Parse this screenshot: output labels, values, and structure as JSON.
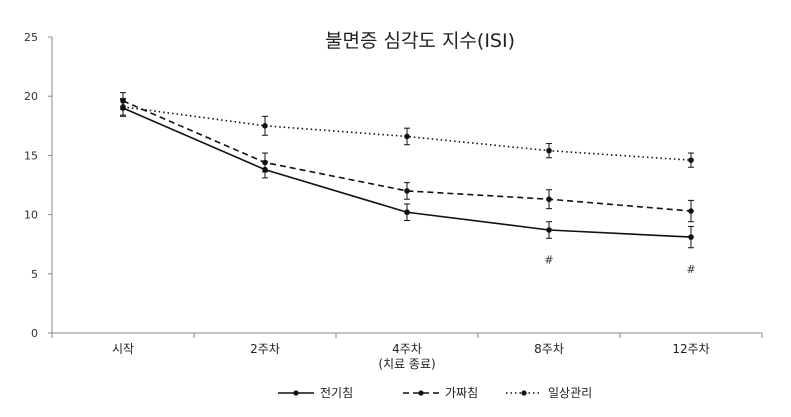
{
  "chart_data": {
    "type": "line",
    "title": "불면증 심각도 지수(ISI)",
    "xlabel": "",
    "ylabel": "",
    "ylim": [
      0,
      25
    ],
    "yticks": [
      0,
      5,
      10,
      15,
      20,
      25
    ],
    "categories": [
      "시작",
      "2주차",
      "4주차",
      "8주차",
      "12주차"
    ],
    "category_sublabels": [
      "",
      "",
      "(치료 종료)",
      "",
      ""
    ],
    "series": [
      {
        "name": "전기침",
        "style": "solid",
        "values": [
          19.0,
          13.8,
          10.2,
          8.7,
          8.1
        ],
        "error": [
          0.7,
          0.7,
          0.7,
          0.7,
          0.9
        ]
      },
      {
        "name": "가짜침",
        "style": "dashed",
        "values": [
          19.6,
          14.4,
          12.0,
          11.3,
          10.3
        ],
        "error": [
          0.7,
          0.8,
          0.7,
          0.8,
          0.9
        ]
      },
      {
        "name": "일상관리",
        "style": "dotted",
        "values": [
          19.1,
          17.5,
          16.6,
          15.4,
          14.6
        ],
        "error": [
          0.7,
          0.8,
          0.7,
          0.6,
          0.6
        ]
      }
    ],
    "annotations": [
      {
        "category": "8주차",
        "text": "#"
      },
      {
        "category": "12주차",
        "text": "#"
      }
    ],
    "grid": false,
    "legend_position": "bottom",
    "colors": {
      "line": "#111111",
      "axis": "#888888"
    }
  }
}
